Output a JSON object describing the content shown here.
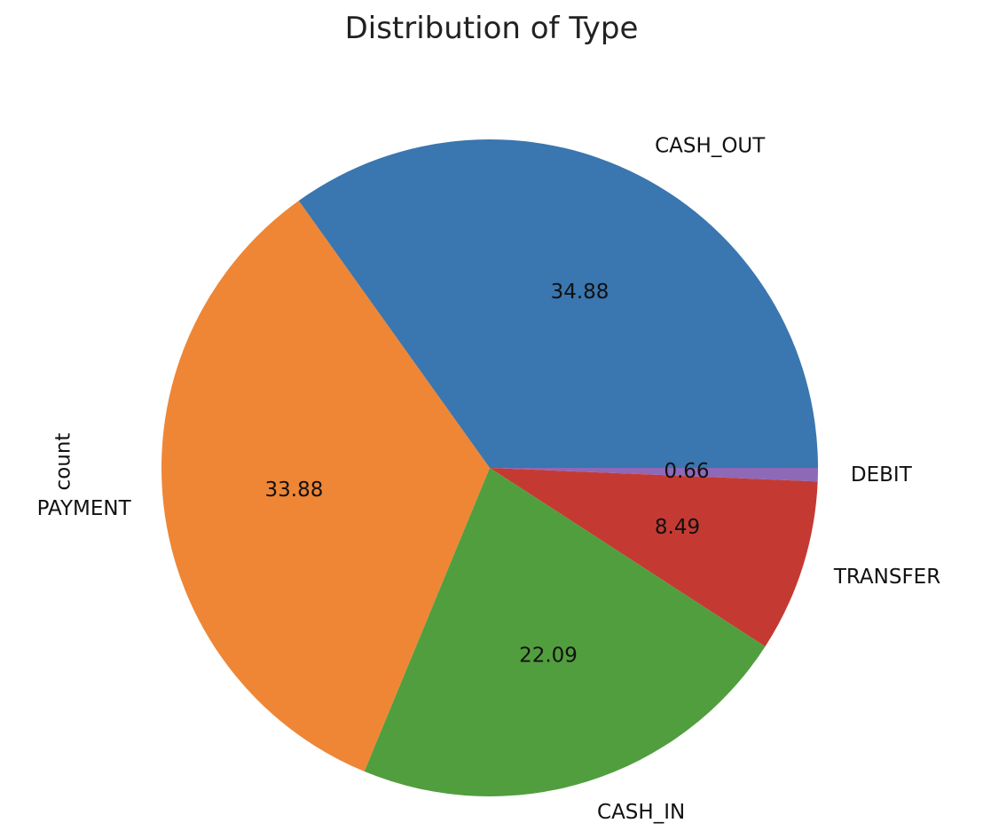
{
  "chart_data": {
    "type": "pie",
    "title": "Distribution of Type",
    "ylabel": "count",
    "start_angle_deg": 0,
    "direction": "counterclockwise",
    "slices": [
      {
        "label": "CASH_OUT",
        "value": 34.88,
        "color": "#3a76af"
      },
      {
        "label": "PAYMENT",
        "value": 33.88,
        "color": "#ee8636"
      },
      {
        "label": "CASH_IN",
        "value": 22.09,
        "color": "#519e3e"
      },
      {
        "label": "TRANSFER",
        "value": 8.49,
        "color": "#c43a32"
      },
      {
        "label": "DEBIT",
        "value": 0.66,
        "color": "#8d69b8"
      }
    ],
    "pct_format": "%.2f"
  }
}
